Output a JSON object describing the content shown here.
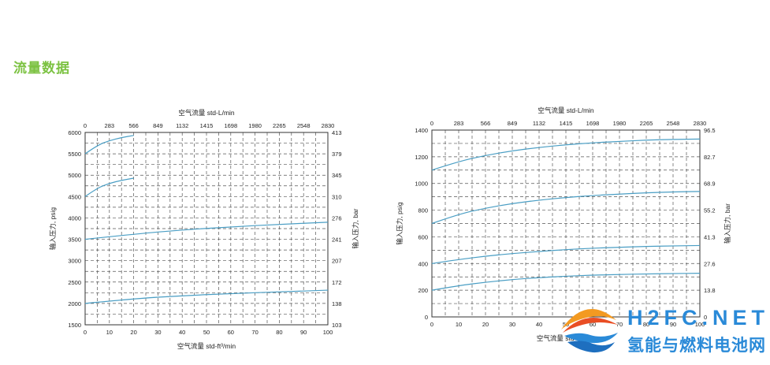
{
  "page": {
    "title": "流量数据"
  },
  "logo": {
    "line1": "H2FC.NET",
    "line2": "氢能与燃料电池网"
  },
  "chart_data": [
    {
      "type": "line",
      "top_axis_label": "空气流量 std-L/min",
      "xlabel": "空气流量 std-ft³/min",
      "ylabel": "输入压力, psig",
      "y2label": "输入压力, bar",
      "x_ticks": [
        "0",
        "10",
        "20",
        "30",
        "40",
        "50",
        "60",
        "70",
        "80",
        "90",
        "100"
      ],
      "x2_ticks": [
        "0",
        "283",
        "566",
        "849",
        "1132",
        "1415",
        "1698",
        "1980",
        "2265",
        "2548",
        "2830"
      ],
      "y_ticks": [
        "1500",
        "2000",
        "2500",
        "3000",
        "3500",
        "4000",
        "4500",
        "5000",
        "5500",
        "6000"
      ],
      "y2_ticks": [
        "103",
        "138",
        "172",
        "207",
        "241",
        "276",
        "310",
        "345",
        "379",
        "413"
      ],
      "xlim": [
        0,
        100
      ],
      "ylim": [
        1500,
        6000
      ],
      "grid": true,
      "series": [
        {
          "x": [
            0,
            5,
            10,
            15,
            20
          ],
          "y": [
            5500,
            5700,
            5810,
            5880,
            5930
          ]
        },
        {
          "x": [
            0,
            5,
            10,
            15,
            20
          ],
          "y": [
            4500,
            4700,
            4810,
            4880,
            4930
          ]
        },
        {
          "x": [
            0,
            20,
            40,
            60,
            80,
            100
          ],
          "y": [
            3500,
            3620,
            3720,
            3790,
            3850,
            3900
          ]
        },
        {
          "x": [
            0,
            20,
            40,
            60,
            80,
            100
          ],
          "y": [
            2000,
            2110,
            2180,
            2230,
            2270,
            2310
          ]
        }
      ]
    },
    {
      "type": "line",
      "top_axis_label": "空气流量 std-L/min",
      "xlabel": "空气流量 std-ft³/min",
      "ylabel": "输入压力, psig",
      "y2label": "输入压力, bar",
      "x_ticks": [
        "0",
        "10",
        "20",
        "30",
        "40",
        "50",
        "60",
        "70",
        "80",
        "90",
        "100"
      ],
      "x2_ticks": [
        "0",
        "283",
        "566",
        "849",
        "1132",
        "1415",
        "1698",
        "1980",
        "2265",
        "2548",
        "2830"
      ],
      "y_ticks": [
        "0",
        "200",
        "400",
        "600",
        "800",
        "1000",
        "1200",
        "1400"
      ],
      "y2_ticks": [
        "0",
        "13.8",
        "27.6",
        "41.3",
        "55.2",
        "68.9",
        "82.7",
        "96.5"
      ],
      "xlim": [
        0,
        100
      ],
      "ylim": [
        0,
        1400
      ],
      "grid": true,
      "series": [
        {
          "x": [
            0,
            10,
            20,
            30,
            40,
            50,
            60,
            70,
            80,
            90,
            100
          ],
          "y": [
            1100,
            1165,
            1210,
            1245,
            1270,
            1290,
            1305,
            1315,
            1325,
            1330,
            1333
          ]
        },
        {
          "x": [
            0,
            10,
            20,
            30,
            40,
            50,
            60,
            70,
            80,
            90,
            100
          ],
          "y": [
            700,
            770,
            815,
            850,
            875,
            895,
            910,
            920,
            930,
            937,
            940
          ]
        },
        {
          "x": [
            0,
            10,
            20,
            30,
            40,
            50,
            60,
            70,
            80,
            90,
            100
          ],
          "y": [
            400,
            430,
            455,
            475,
            490,
            505,
            515,
            522,
            528,
            532,
            535
          ]
        },
        {
          "x": [
            0,
            10,
            20,
            30,
            40,
            50,
            60,
            70,
            80,
            90,
            100
          ],
          "y": [
            200,
            235,
            260,
            280,
            295,
            305,
            313,
            318,
            322,
            325,
            327
          ]
        }
      ]
    }
  ]
}
